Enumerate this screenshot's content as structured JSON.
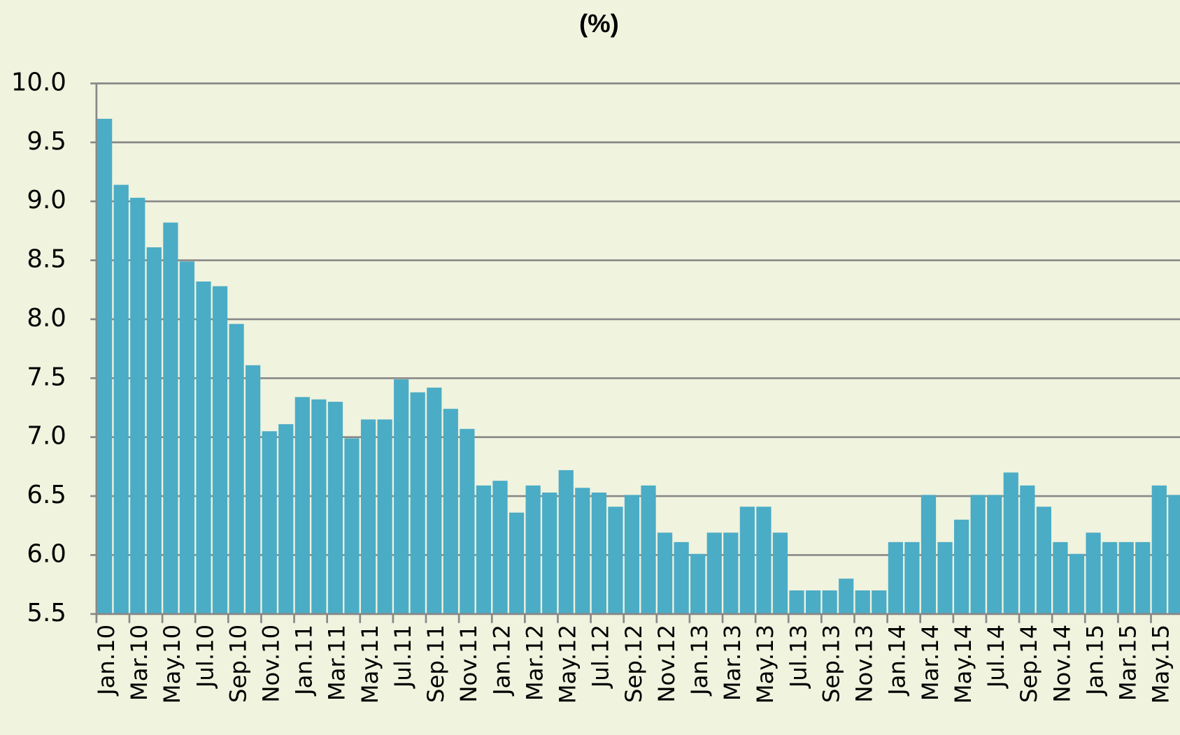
{
  "chart_data": {
    "type": "bar",
    "title": "(%)",
    "categories": [
      "Jan.10",
      null,
      "Mar.10",
      null,
      "May.10",
      null,
      "Jul.10",
      null,
      "Sep.10",
      null,
      "Nov.10",
      null,
      "Jan.11",
      null,
      "Mar.11",
      null,
      "May.11",
      null,
      "Jul.11",
      null,
      "Sep.11",
      null,
      "Nov.11",
      null,
      "Jan.12",
      null,
      "Mar.12",
      null,
      "May.12",
      null,
      "Jul.12",
      null,
      "Sep.12",
      null,
      "Nov.12",
      null,
      "Jan.13",
      null,
      "Mar.13",
      null,
      "May.13",
      null,
      "Jul.13",
      null,
      "Sep.13",
      null,
      "Nov.13",
      null,
      "Jan.14",
      null,
      "Mar.14",
      null,
      "May.14",
      null,
      "Jul.14",
      null,
      "Sep.14",
      null,
      "Nov.14",
      null,
      "Jan.15",
      null,
      "Mar.15",
      null,
      "May.15",
      null
    ],
    "values": [
      9.7,
      9.14,
      9.03,
      8.61,
      8.82,
      8.49,
      8.32,
      8.28,
      7.96,
      7.61,
      7.05,
      7.11,
      7.34,
      7.32,
      7.3,
      6.99,
      7.15,
      7.15,
      7.49,
      7.38,
      7.42,
      7.24,
      7.07,
      6.59,
      6.63,
      6.36,
      6.59,
      6.53,
      6.72,
      6.57,
      6.53,
      6.41,
      6.51,
      6.59,
      6.19,
      6.11,
      6.01,
      6.19,
      6.19,
      6.41,
      6.41,
      6.19,
      5.7,
      5.7,
      5.7,
      5.8,
      5.7,
      5.7,
      6.11,
      6.11,
      6.51,
      6.11,
      6.3,
      6.51,
      6.51,
      6.7,
      6.59,
      6.41,
      6.11,
      6.01,
      6.19,
      6.11,
      6.11,
      6.11,
      6.59,
      6.51
    ],
    "color": "#4bacc6",
    "ylim": [
      5.5,
      10
    ],
    "yticks": [
      5.5,
      {
        "value": 6,
        "label": "6.0"
      },
      6.5,
      {
        "value": 7,
        "label": "7.0"
      },
      7.5,
      {
        "value": 8,
        "label": "8.0"
      },
      8.5,
      {
        "value": 9,
        "label": "9.0"
      },
      9.5,
      {
        "value": 10,
        "label": "10.0"
      }
    ],
    "grid": true
  }
}
